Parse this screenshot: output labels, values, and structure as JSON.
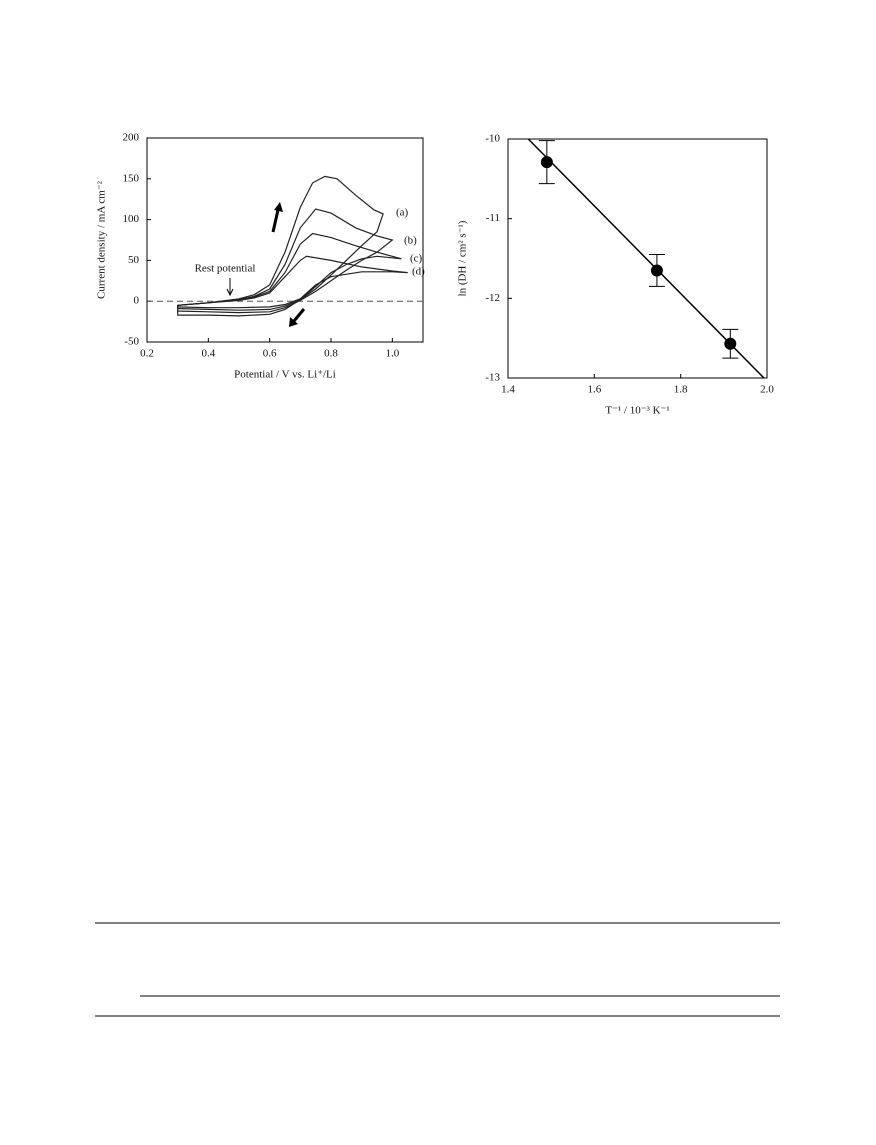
{
  "chart_data": [
    {
      "type": "line",
      "ylabel": "Current density / mA cm⁻²",
      "xlabel": "Potential / V vs. Li⁺/Li",
      "xlim": [
        0.2,
        1.1
      ],
      "ylim": [
        -50,
        200
      ],
      "xticks": [
        0.2,
        0.4,
        0.6,
        0.8,
        {
          "value": 1,
          "label": "1.0"
        }
      ],
      "yticks": [
        -50,
        0,
        50,
        100,
        150,
        200
      ],
      "annotations": [
        "Rest potential"
      ],
      "series": [
        {
          "name": "(a)",
          "color": "#222",
          "x": [
            0.3,
            0.4,
            0.5,
            0.55,
            0.6,
            0.65,
            0.7,
            0.74,
            0.78,
            0.82,
            0.88,
            0.94,
            0.97,
            0.95,
            0.9,
            0.85,
            0.8,
            0.75,
            0.7,
            0.65,
            0.6,
            0.5,
            0.4,
            0.3,
            0.3
          ],
          "values": [
            -5,
            -2,
            3,
            8,
            20,
            60,
            115,
            145,
            153,
            150,
            130,
            112,
            107,
            85,
            68,
            50,
            32,
            15,
            2,
            -10,
            -16,
            -18,
            -17,
            -17,
            -5
          ]
        },
        {
          "name": "(b)",
          "color": "#222",
          "x": [
            0.3,
            0.4,
            0.5,
            0.55,
            0.6,
            0.65,
            0.7,
            0.75,
            0.8,
            0.88,
            0.95,
            1.0,
            0.95,
            0.9,
            0.85,
            0.8,
            0.75,
            0.7,
            0.65,
            0.6,
            0.5,
            0.4,
            0.3,
            0.3
          ],
          "values": [
            -5,
            -2,
            2,
            6,
            15,
            45,
            90,
            113,
            108,
            90,
            80,
            75,
            60,
            50,
            38,
            25,
            12,
            1,
            -8,
            -13,
            -14,
            -13,
            -12,
            -5
          ]
        },
        {
          "name": "(c)",
          "color": "#222",
          "x": [
            0.3,
            0.4,
            0.5,
            0.55,
            0.6,
            0.65,
            0.7,
            0.74,
            0.8,
            0.88,
            0.95,
            1.03,
            0.95,
            0.9,
            0.85,
            0.8,
            0.75,
            0.7,
            0.65,
            0.6,
            0.5,
            0.4,
            0.3,
            0.3
          ],
          "values": [
            -5,
            -2,
            2,
            5,
            12,
            35,
            70,
            83,
            78,
            68,
            60,
            52,
            55,
            52,
            45,
            35,
            18,
            2,
            -6,
            -10,
            -11,
            -10,
            -9,
            -5
          ]
        },
        {
          "name": "(d)",
          "color": "#222",
          "x": [
            0.3,
            0.4,
            0.5,
            0.55,
            0.6,
            0.65,
            0.7,
            0.72,
            0.8,
            0.9,
            1.0,
            1.05,
            1.0,
            0.9,
            0.8,
            0.75,
            0.7,
            0.65,
            0.6,
            0.5,
            0.4,
            0.3,
            0.3
          ],
          "values": [
            -5,
            -2,
            1,
            4,
            10,
            30,
            50,
            55,
            50,
            42,
            37,
            35,
            36,
            36,
            30,
            20,
            3,
            -4,
            -7,
            -8,
            -8,
            -7,
            -5
          ]
        }
      ]
    },
    {
      "type": "scatter",
      "ylabel": "ln (DH / cm² s⁻¹)",
      "xlabel": "T⁻¹ / 10⁻³ K⁻¹",
      "xlim": [
        1.4,
        2.0
      ],
      "ylim": [
        -13,
        -10
      ],
      "xticks": [
        1.4,
        1.6,
        1.8,
        {
          "value": 2,
          "label": "2.0"
        }
      ],
      "yticks": [
        -10,
        -11,
        -12,
        -13
      ],
      "color": "#000",
      "x": [
        1.49,
        1.745,
        1.915
      ],
      "values": [
        -10.29,
        -11.65,
        -12.57
      ],
      "errors": [
        0.27,
        0.2,
        0.18
      ],
      "fit": {
        "x": [
          1.447,
          1.993
        ],
        "values": [
          -10,
          -13
        ]
      }
    }
  ]
}
